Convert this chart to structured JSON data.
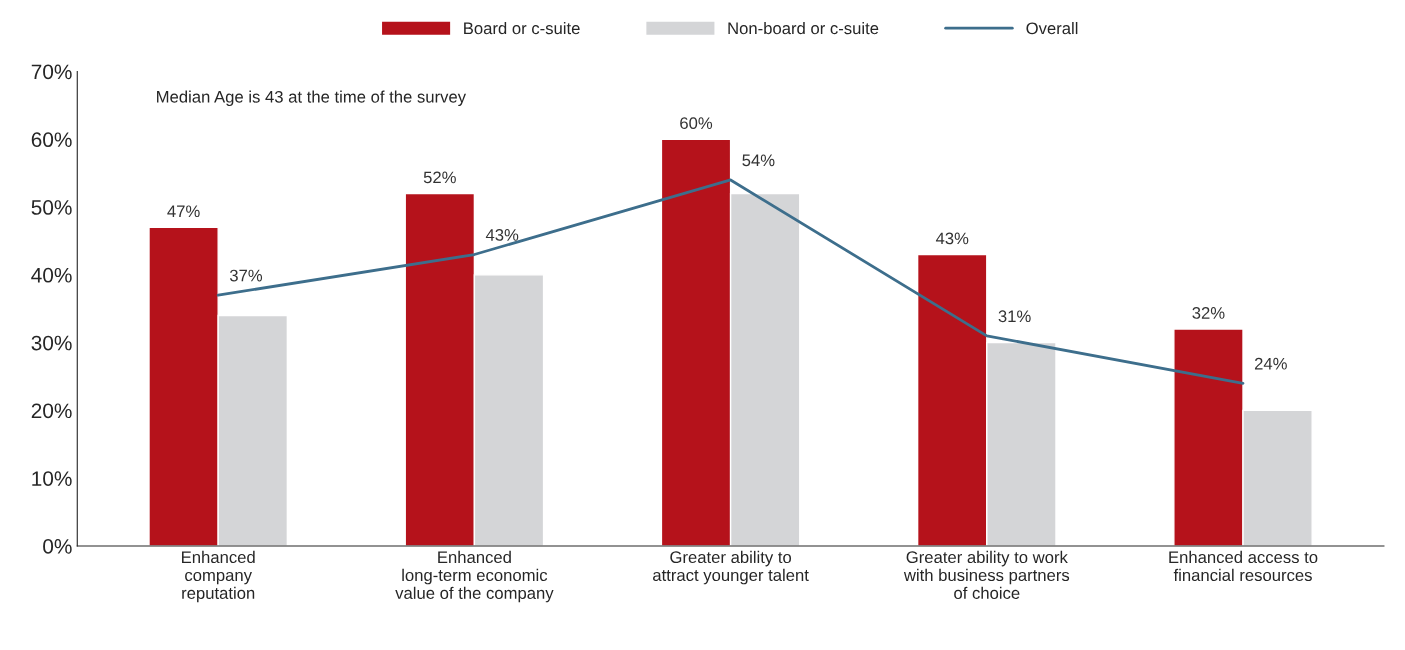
{
  "chart_data": {
    "type": "bar",
    "categories": [
      "Enhanced\ncompany\nreputation",
      "Enhanced\nlong-term economic\nvalue of the company",
      "Greater ability to\nattract younger talent",
      "Greater ability to work\nwith business partners\nof choice",
      "Enhanced access to\nfinancial resources"
    ],
    "series": [
      {
        "name": "Board or c-suite",
        "color": "#b5121b",
        "values": [
          47,
          52,
          60,
          43,
          32
        ],
        "value_labels": [
          "47%",
          "52%",
          "60%",
          "43%",
          "32%"
        ]
      },
      {
        "name": "Non-board or c-suite",
        "color": "#d4d5d7",
        "values": [
          34,
          40,
          52,
          30,
          20
        ]
      },
      {
        "name": "Overall",
        "type": "line",
        "color": "#3d6e8c",
        "values": [
          37,
          43,
          54,
          31,
          24
        ],
        "value_labels": [
          "37%",
          "43%",
          "54%",
          "31%",
          "24%"
        ]
      }
    ],
    "ylim": [
      0,
      70
    ],
    "yticks": [
      {
        "value": 0,
        "label": "0%"
      },
      {
        "value": 10,
        "label": "10%"
      },
      {
        "value": 20,
        "label": "20%"
      },
      {
        "value": 30,
        "label": "30%"
      },
      {
        "value": 40,
        "label": "40%"
      },
      {
        "value": 50,
        "label": "50%"
      },
      {
        "value": 60,
        "label": "60%"
      },
      {
        "value": 70,
        "label": "70%"
      }
    ],
    "annotations": [
      "Median Age is 43 at the time of the survey"
    ],
    "legend": "top",
    "grid": false,
    "marker": "none",
    "line_style": "solid"
  }
}
